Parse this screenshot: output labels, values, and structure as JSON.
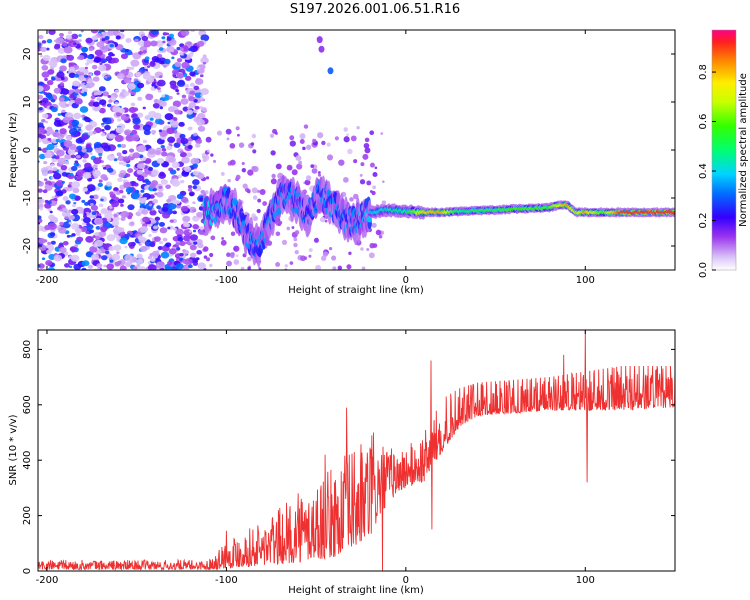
{
  "title": "S197.2026.001.06.51.R16",
  "chart_data": [
    {
      "type": "heatmap",
      "xlabel": "Height of straight line (km)",
      "ylabel": "Frequency (Hz)",
      "xlim": [
        -205,
        150
      ],
      "ylim": [
        -25,
        25
      ],
      "xticks": [
        -200,
        -100,
        0,
        100
      ],
      "yticks": [
        -20,
        -10,
        0,
        10,
        20
      ],
      "colorbar": {
        "label": "Normalized spectral amplitude",
        "range": [
          0,
          0.97
        ],
        "ticks": [
          0.0,
          0.2,
          0.4,
          0.6,
          0.8
        ],
        "tick_labels": [
          "0.0",
          "0.2",
          "0.4",
          "0.6",
          "0.8"
        ]
      },
      "noise_region": {
        "x_range": [
          -205,
          -112
        ],
        "amplitude_range": [
          0.05,
          0.35
        ]
      },
      "signal_track": [
        {
          "x": -112,
          "freq": -13,
          "amp": 0.45
        },
        {
          "x": -105,
          "freq": -12.5,
          "amp": 0.35
        },
        {
          "x": -100,
          "freq": -10,
          "amp": 0.35
        },
        {
          "x": -93,
          "freq": -14,
          "amp": 0.35
        },
        {
          "x": -88,
          "freq": -18,
          "amp": 0.35
        },
        {
          "x": -82,
          "freq": -20,
          "amp": 0.35
        },
        {
          "x": -75,
          "freq": -14,
          "amp": 0.35
        },
        {
          "x": -68,
          "freq": -9,
          "amp": 0.35
        },
        {
          "x": -60,
          "freq": -11,
          "amp": 0.35
        },
        {
          "x": -55,
          "freq": -14,
          "amp": 0.3
        },
        {
          "x": -48,
          "freq": -9,
          "amp": 0.35
        },
        {
          "x": -42,
          "freq": -11,
          "amp": 0.35
        },
        {
          "x": -35,
          "freq": -14,
          "amp": 0.35
        },
        {
          "x": -28,
          "freq": -15,
          "amp": 0.35
        },
        {
          "x": -20,
          "freq": -13,
          "amp": 0.4
        },
        {
          "x": -10,
          "freq": -12.5,
          "amp": 0.45
        },
        {
          "x": 0,
          "freq": -12.8,
          "amp": 0.5
        },
        {
          "x": 10,
          "freq": -13,
          "amp": 0.8
        },
        {
          "x": 20,
          "freq": -13,
          "amp": 0.85
        },
        {
          "x": 30,
          "freq": -12.8,
          "amp": 0.5
        },
        {
          "x": 40,
          "freq": -12.6,
          "amp": 0.55
        },
        {
          "x": 50,
          "freq": -12.5,
          "amp": 0.55
        },
        {
          "x": 60,
          "freq": -12.3,
          "amp": 0.6
        },
        {
          "x": 70,
          "freq": -12.2,
          "amp": 0.6
        },
        {
          "x": 80,
          "freq": -12,
          "amp": 0.6
        },
        {
          "x": 85,
          "freq": -11.5,
          "amp": 0.75
        },
        {
          "x": 90,
          "freq": -11.5,
          "amp": 0.85
        },
        {
          "x": 95,
          "freq": -13,
          "amp": 0.7
        },
        {
          "x": 100,
          "freq": -13,
          "amp": 0.85
        },
        {
          "x": 110,
          "freq": -13,
          "amp": 0.6
        },
        {
          "x": 120,
          "freq": -13,
          "amp": 0.95
        },
        {
          "x": 130,
          "freq": -13,
          "amp": 0.95
        },
        {
          "x": 140,
          "freq": -13,
          "amp": 0.95
        },
        {
          "x": 150,
          "freq": -13,
          "amp": 0.95
        }
      ],
      "isolated_blobs": [
        {
          "x": -48,
          "freq": 23,
          "amp": 0.15
        },
        {
          "x": -47,
          "freq": 21,
          "amp": 0.15
        },
        {
          "x": -42,
          "freq": 16.5,
          "amp": 0.3
        }
      ]
    },
    {
      "type": "line",
      "xlabel": "Height of straight line (km)",
      "ylabel": "SNR (10 * v/v)",
      "xlim": [
        -205,
        150
      ],
      "ylim": [
        0,
        870
      ],
      "xticks": [
        -200,
        -100,
        0,
        100
      ],
      "yticks": [
        0,
        200,
        400,
        600,
        800
      ],
      "series": [
        {
          "name": "SNR",
          "color": "#ee3030",
          "envelope": [
            {
              "x": -205,
              "low": 5,
              "high": 40
            },
            {
              "x": -110,
              "low": 5,
              "high": 40
            },
            {
              "x": -100,
              "low": 10,
              "high": 120
            },
            {
              "x": -80,
              "low": 20,
              "high": 180
            },
            {
              "x": -60,
              "low": 30,
              "high": 280
            },
            {
              "x": -40,
              "low": 50,
              "high": 380
            },
            {
              "x": -30,
              "low": 80,
              "high": 450
            },
            {
              "x": -20,
              "low": 120,
              "high": 500
            },
            {
              "x": -10,
              "low": 250,
              "high": 450
            },
            {
              "x": 0,
              "low": 300,
              "high": 450
            },
            {
              "x": 10,
              "low": 320,
              "high": 500
            },
            {
              "x": 20,
              "low": 430,
              "high": 620
            },
            {
              "x": 30,
              "low": 520,
              "high": 660
            },
            {
              "x": 40,
              "low": 560,
              "high": 680
            },
            {
              "x": 60,
              "low": 570,
              "high": 690
            },
            {
              "x": 80,
              "low": 580,
              "high": 700
            },
            {
              "x": 100,
              "low": 580,
              "high": 720
            },
            {
              "x": 120,
              "low": 580,
              "high": 740
            },
            {
              "x": 150,
              "low": 590,
              "high": 740
            }
          ],
          "spikes": [
            {
              "x": -100,
              "value": 145
            },
            {
              "x": -60,
              "value": 280
            },
            {
              "x": -45,
              "value": 420
            },
            {
              "x": -33,
              "value": 590
            },
            {
              "x": -18,
              "value": 500
            },
            {
              "x": -13,
              "value": 0
            },
            {
              "x": 14,
              "value": 760
            },
            {
              "x": 14.5,
              "value": 150
            },
            {
              "x": 88,
              "value": 780
            },
            {
              "x": 100,
              "value": 870
            },
            {
              "x": 101,
              "value": 320
            }
          ]
        }
      ]
    }
  ]
}
